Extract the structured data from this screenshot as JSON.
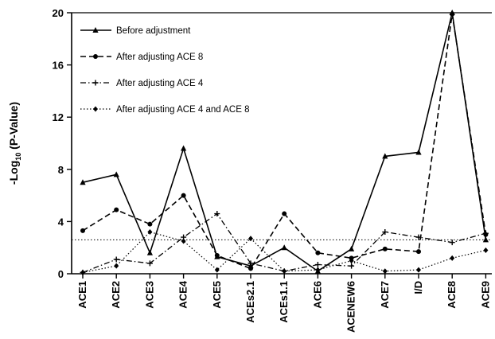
{
  "chart_data": {
    "type": "line",
    "ylabel": "-Log10 (P-Value)",
    "ylabel_parts": {
      "pre": "-Log",
      "sub": "10",
      "post": " (P-Value)"
    },
    "xlabel": "",
    "ylim": [
      0,
      20
    ],
    "yticks": [
      0,
      4,
      8,
      12,
      16,
      20
    ],
    "categories": [
      "ACE1",
      "ACE2",
      "ACE3",
      "ACE4",
      "ACE5",
      "ACEs2.1",
      "ACEs1.1",
      "ACE6",
      "ACENEW6",
      "ACE7",
      "I/D",
      "ACE8",
      "ACE9"
    ],
    "threshold": 2.6,
    "legend_position": "top-left",
    "grid": false,
    "series": [
      {
        "name": "Before adjustment",
        "dash": "solid",
        "marker": "triangle",
        "values": [
          7.0,
          7.6,
          1.6,
          9.6,
          1.3,
          0.6,
          2.0,
          0.2,
          1.9,
          9.0,
          9.3,
          20.0,
          2.6
        ]
      },
      {
        "name": "After adjusting ACE 8",
        "dash": "dashed",
        "marker": "circle",
        "values": [
          3.3,
          4.9,
          3.8,
          6.0,
          1.4,
          0.4,
          4.6,
          1.6,
          1.2,
          1.9,
          1.7,
          19.9,
          3.0
        ]
      },
      {
        "name": "After adjusting ACE 4",
        "dash": "dashdot",
        "marker": "plus",
        "values": [
          0.1,
          1.1,
          0.8,
          2.8,
          4.6,
          0.8,
          0.2,
          0.7,
          0.6,
          3.2,
          2.8,
          2.4,
          3.1
        ]
      },
      {
        "name": "After adjusting ACE 4 and ACE 8",
        "dash": "dotted",
        "marker": "diamond",
        "values": [
          0.1,
          0.6,
          3.2,
          2.5,
          0.3,
          2.7,
          0.2,
          0.3,
          1.0,
          0.2,
          0.3,
          1.2,
          1.8
        ]
      }
    ]
  }
}
